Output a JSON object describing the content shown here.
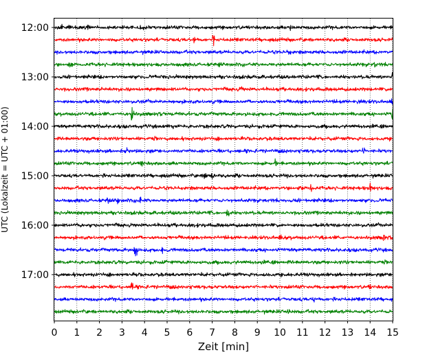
{
  "chart_data": {
    "type": "line",
    "title": "",
    "xlabel": "Zeit  [min]",
    "ylabel": "UTC (Lokalzeit = UTC + 01:00)",
    "xlim": [
      0,
      15
    ],
    "x_ticks": [
      "0",
      "1",
      "2",
      "3",
      "4",
      "5",
      "6",
      "7",
      "8",
      "9",
      "10",
      "11",
      "12",
      "13",
      "14",
      "15"
    ],
    "y_ticks": [
      "12:00",
      "13:00",
      "14:00",
      "15:00",
      "16:00",
      "17:00"
    ],
    "grid": "vertical dotted",
    "color_cycle": [
      "#000000",
      "#ff0000",
      "#0000ff",
      "#008000"
    ],
    "interval_minutes": 15,
    "series": [
      {
        "start": "12:00",
        "color": "#000000",
        "events": [
          [
            0.3,
            0.5
          ],
          [
            10.5,
            0.6
          ]
        ]
      },
      {
        "start": "12:15",
        "color": "#ff0000",
        "events": [
          [
            6.2,
            0.6
          ],
          [
            7.05,
            1.4
          ]
        ]
      },
      {
        "start": "12:30",
        "color": "#0000ff",
        "events": [
          [
            10.4,
            0.5
          ]
        ]
      },
      {
        "start": "12:45",
        "color": "#008000",
        "events": [
          [
            0.7,
            0.8
          ],
          [
            7.3,
            0.5
          ],
          [
            14.2,
            0.5
          ]
        ]
      },
      {
        "start": "13:00",
        "color": "#000000",
        "events": [
          [
            15.0,
            1.0
          ]
        ]
      },
      {
        "start": "13:15",
        "color": "#ff0000",
        "events": [
          [
            2.1,
            0.5
          ],
          [
            8.3,
            0.4
          ]
        ]
      },
      {
        "start": "13:30",
        "color": "#0000ff",
        "events": [
          [
            13.5,
            0.5
          ],
          [
            15.0,
            2.5
          ]
        ]
      },
      {
        "start": "13:45",
        "color": "#008000",
        "events": [
          [
            3.45,
            1.8
          ],
          [
            15.0,
            1.2
          ]
        ]
      },
      {
        "start": "14:00",
        "color": "#000000",
        "events": [
          [
            5.3,
            0.4
          ]
        ]
      },
      {
        "start": "14:15",
        "color": "#ff0000",
        "events": [
          [
            12.3,
            0.5
          ]
        ]
      },
      {
        "start": "14:30",
        "color": "#0000ff",
        "events": [
          [
            3.2,
            0.5
          ],
          [
            13.7,
            0.8
          ]
        ]
      },
      {
        "start": "14:45",
        "color": "#008000",
        "events": [
          [
            3.9,
            0.7
          ],
          [
            9.8,
            0.5
          ]
        ]
      },
      {
        "start": "15:00",
        "color": "#000000",
        "events": [
          [
            6.7,
            0.8
          ],
          [
            7.0,
            1.3
          ]
        ]
      },
      {
        "start": "15:15",
        "color": "#ff0000",
        "events": [
          [
            11.4,
            0.7
          ],
          [
            14.0,
            0.7
          ]
        ]
      },
      {
        "start": "15:30",
        "color": "#0000ff",
        "events": [
          [
            2.4,
            0.6
          ],
          [
            2.8,
            0.8
          ],
          [
            3.8,
            0.6
          ]
        ]
      },
      {
        "start": "15:45",
        "color": "#008000",
        "events": [
          [
            7.7,
            1.0
          ]
        ]
      },
      {
        "start": "16:00",
        "color": "#000000",
        "events": [
          [
            1.2,
            0.4
          ]
        ]
      },
      {
        "start": "16:15",
        "color": "#ff0000",
        "events": [
          [
            10.0,
            0.6
          ],
          [
            14.6,
            0.8
          ]
        ]
      },
      {
        "start": "16:30",
        "color": "#0000ff",
        "events": [
          [
            3.6,
            2.8
          ],
          [
            4.8,
            0.6
          ]
        ]
      },
      {
        "start": "16:45",
        "color": "#008000",
        "events": [
          [
            4.7,
            0.5
          ]
        ]
      },
      {
        "start": "17:00",
        "color": "#000000",
        "events": [
          [
            3.6,
            0.6
          ],
          [
            9.4,
            0.4
          ]
        ]
      },
      {
        "start": "17:15",
        "color": "#ff0000",
        "events": [
          [
            3.45,
            0.8
          ],
          [
            14.0,
            0.4
          ]
        ]
      },
      {
        "start": "17:30",
        "color": "#0000ff",
        "events": [
          [
            11.5,
            0.5
          ]
        ]
      },
      {
        "start": "17:45",
        "color": "#008000",
        "events": [
          [
            10.4,
            0.6
          ],
          [
            1.0,
            0.5
          ]
        ]
      }
    ]
  }
}
